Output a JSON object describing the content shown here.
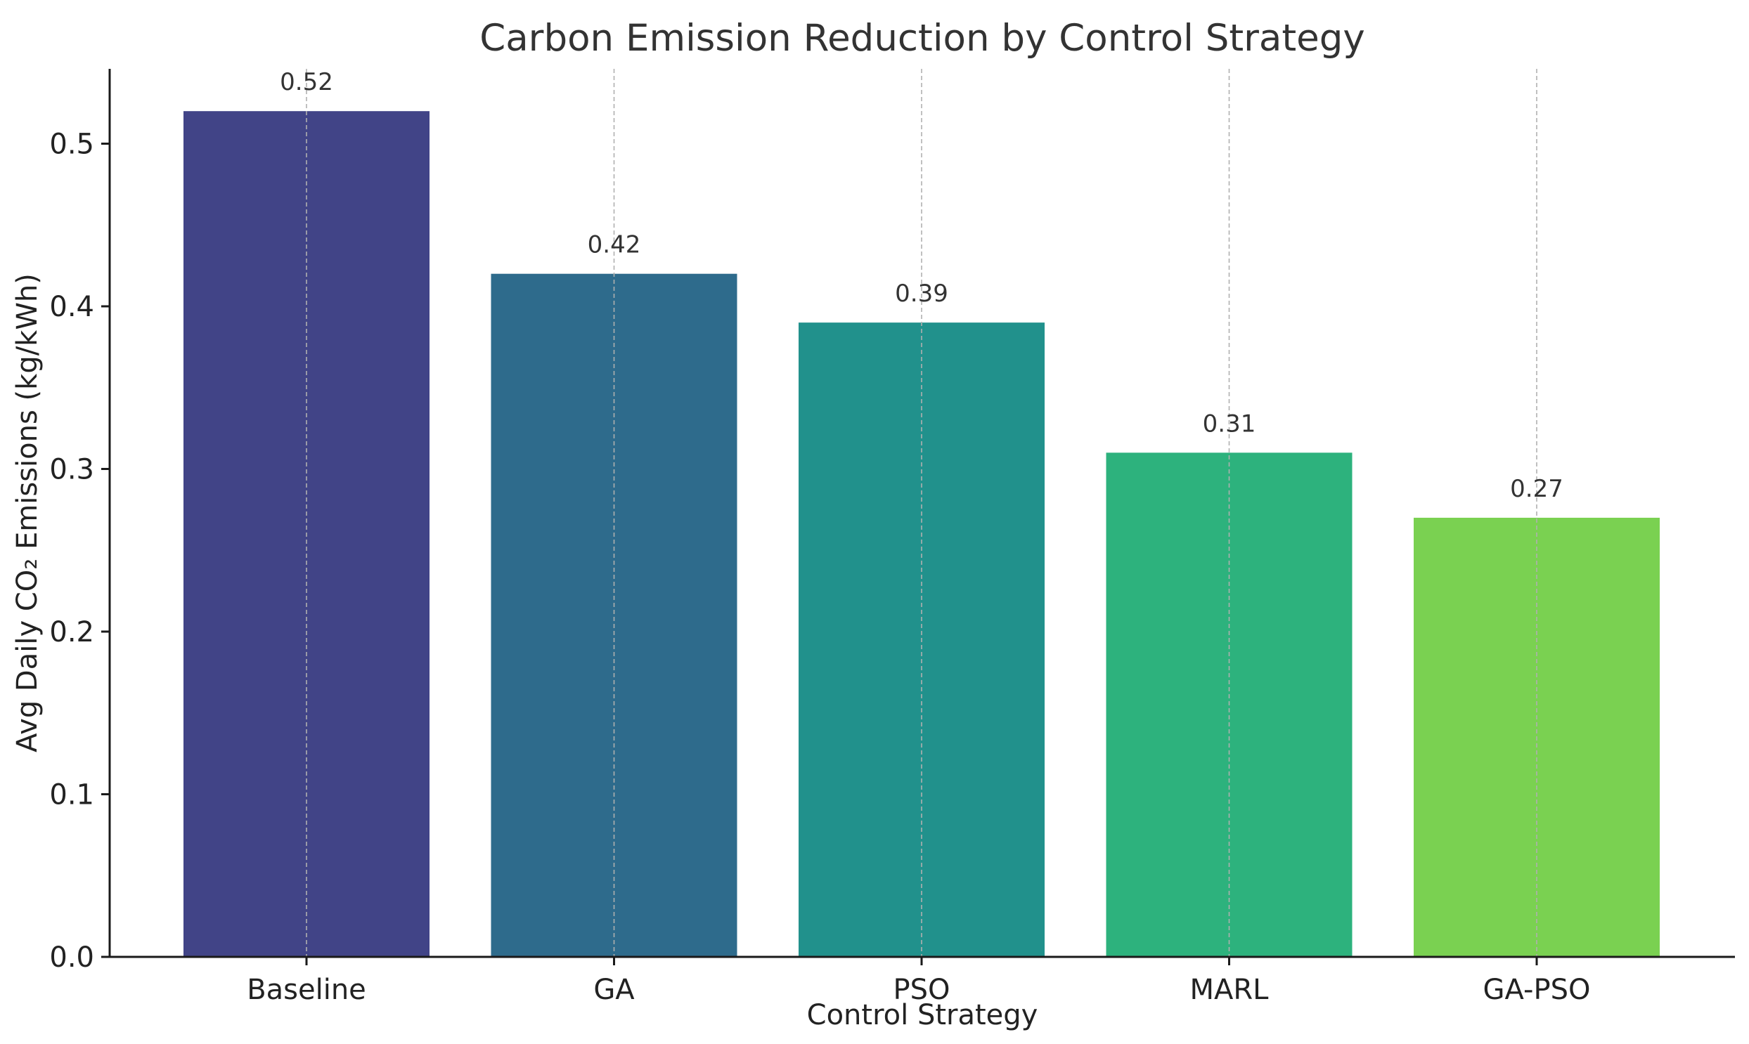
{
  "chart_data": {
    "type": "bar",
    "title": "Carbon Emission Reduction by Control Strategy",
    "xlabel": "Control Strategy",
    "ylabel": "Avg Daily CO₂ Emissions (kg/kWh)",
    "categories": [
      "Baseline",
      "GA",
      "PSO",
      "MARL",
      "GA-PSO"
    ],
    "values": [
      0.52,
      0.42,
      0.39,
      0.31,
      0.27
    ],
    "value_labels": [
      "0.52",
      "0.42",
      "0.39",
      "0.31",
      "0.27"
    ],
    "colors": [
      "#414487",
      "#2e6b8c",
      "#21918c",
      "#2db27d",
      "#7ad151"
    ],
    "ylim": [
      0,
      0.546
    ],
    "yticks": [
      0.0,
      0.1,
      0.2,
      0.3,
      0.4,
      0.5
    ],
    "ytick_labels": [
      "0.0",
      "0.1",
      "0.2",
      "0.3",
      "0.4",
      "0.5"
    ],
    "grid": "x-dashed",
    "legend": "none"
  }
}
